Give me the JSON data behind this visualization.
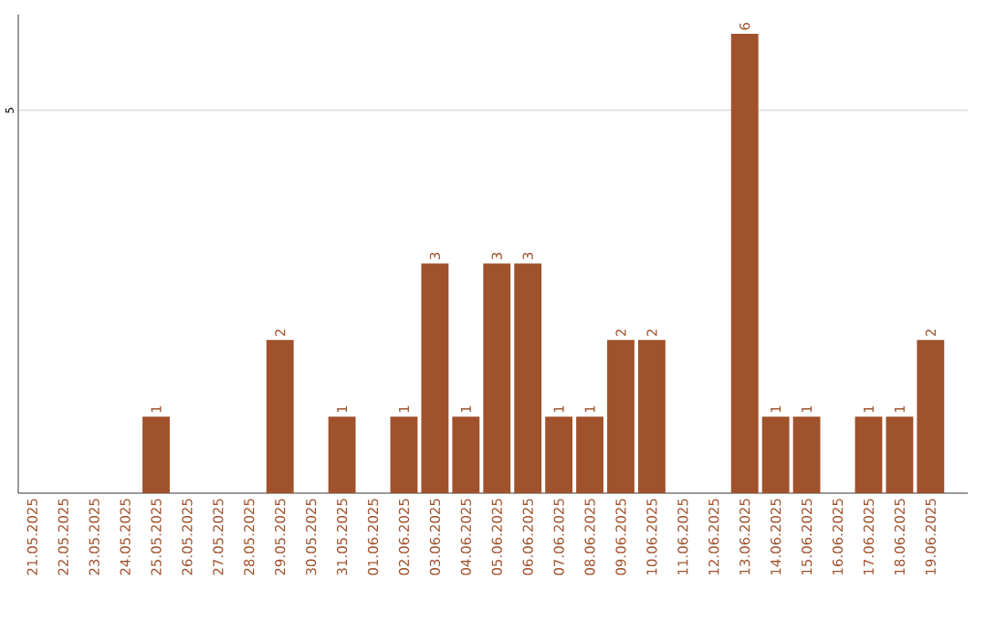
{
  "chart_data": {
    "type": "bar",
    "categories": [
      "21.05.2025",
      "22.05.2025",
      "23.05.2025",
      "24.05.2025",
      "25.05.2025",
      "26.05.2025",
      "27.05.2025",
      "28.05.2025",
      "29.05.2025",
      "30.05.2025",
      "31.05.2025",
      "01.06.2025",
      "02.06.2025",
      "03.06.2025",
      "04.06.2025",
      "05.06.2025",
      "06.06.2025",
      "07.06.2025",
      "08.06.2025",
      "09.06.2025",
      "10.06.2025",
      "11.06.2025",
      "12.06.2025",
      "13.06.2025",
      "14.06.2025",
      "15.06.2025",
      "16.06.2025",
      "17.06.2025",
      "18.06.2025",
      "19.06.2025"
    ],
    "values": [
      0,
      0,
      0,
      0,
      1,
      0,
      0,
      0,
      2,
      0,
      1,
      0,
      1,
      3,
      1,
      3,
      3,
      1,
      1,
      2,
      2,
      0,
      0,
      6,
      1,
      1,
      0,
      1,
      1,
      2
    ],
    "value_labels": [
      null,
      null,
      null,
      null,
      "1",
      null,
      null,
      null,
      "2",
      null,
      "1",
      null,
      "1",
      "3",
      "1",
      "3",
      "3",
      "1",
      "1",
      "2",
      "2",
      null,
      null,
      "6",
      "1",
      "1",
      null,
      "1",
      "1",
      "2"
    ],
    "color": "#a0522d",
    "ylim": [
      0,
      6.25
    ],
    "yticks": [
      5
    ],
    "grid": "y"
  }
}
